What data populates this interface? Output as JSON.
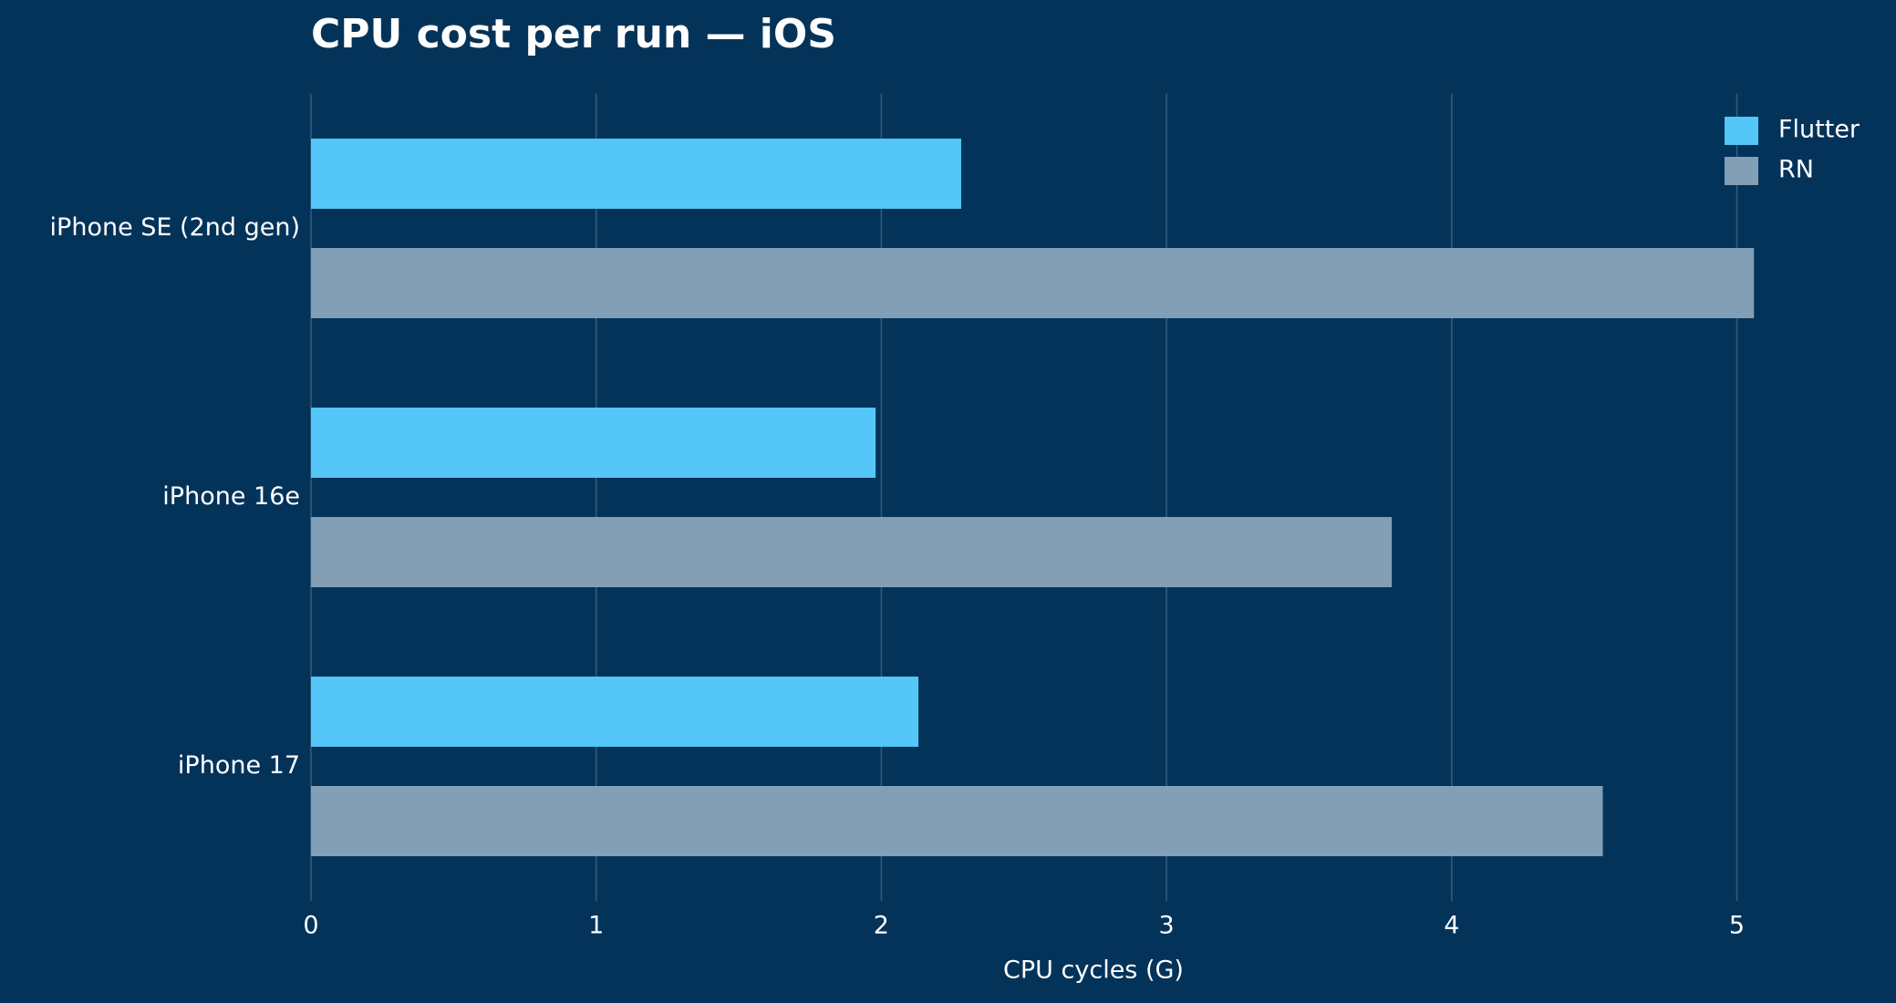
{
  "chart_data": {
    "type": "barh",
    "title": "CPU cost per run — iOS",
    "x_label": "CPU cycles (G)",
    "categories": [
      "iPhone SE (2nd gen)",
      "iPhone 16e",
      "iPhone 17"
    ],
    "series": [
      {
        "name": "Flutter",
        "color": "#54c6f7",
        "values": [
          2.28,
          1.98,
          2.13
        ]
      },
      {
        "name": "RN",
        "color": "#829fb5",
        "values": [
          5.06,
          3.79,
          4.53
        ]
      }
    ],
    "xlim": [
      0,
      5.3
    ],
    "xticks": [
      0,
      1,
      2,
      3,
      4,
      5
    ],
    "grid": true,
    "legend": "upper right"
  }
}
